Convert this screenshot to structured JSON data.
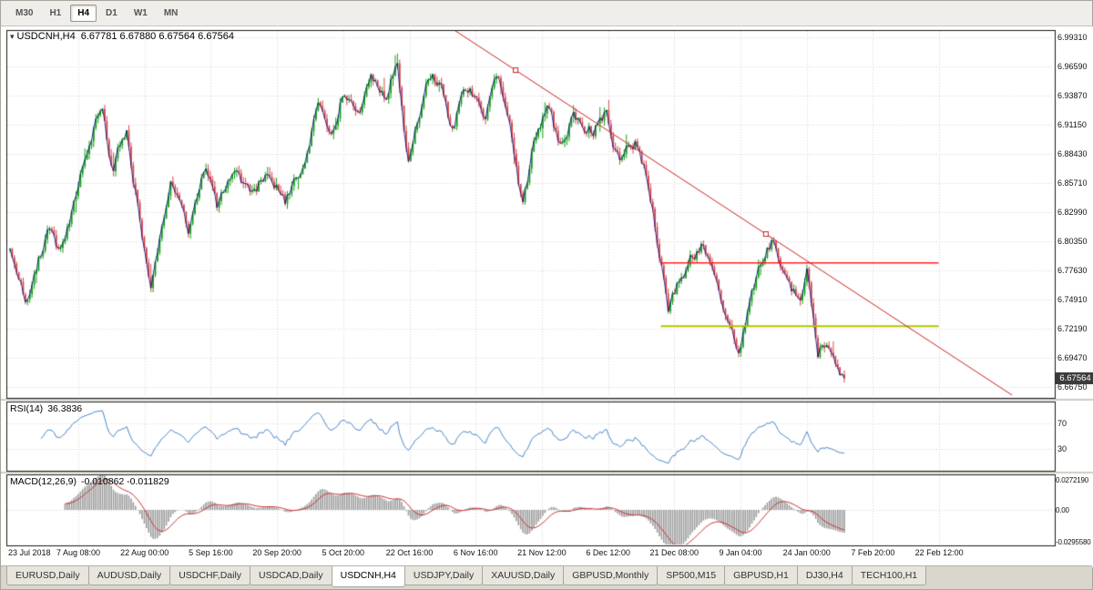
{
  "colors": {
    "up": "#17a317",
    "down": "#d84a4a",
    "close_line": "#000080",
    "rsi_line": "#4a86c8",
    "macd_hist": "#9b9b9b",
    "macd_signal": "#cc3333",
    "trendline": "#cc2222",
    "hline_red": "#ff2020",
    "hline_olive": "#b4c400",
    "grid": "#d6d6d6",
    "badge_bg": "#3c3c3c"
  },
  "toolbar": {
    "timeframes": [
      {
        "label": "M30",
        "active": false
      },
      {
        "label": "H1",
        "active": false
      },
      {
        "label": "H4",
        "active": true
      },
      {
        "label": "D1",
        "active": false
      },
      {
        "label": "W1",
        "active": false
      },
      {
        "label": "MN",
        "active": false
      }
    ]
  },
  "chart": {
    "title_symbol": "USDCNH,H4",
    "title_ohlc": "6.67781 6.67880 6.67564 6.67564",
    "current_price": "6.67564",
    "price_axis_labels": [
      "6.99310",
      "6.96590",
      "6.93870",
      "6.91150",
      "6.88430",
      "6.85710",
      "6.82990",
      "6.80350",
      "6.77630",
      "6.74910",
      "6.72190",
      "6.69470",
      "6.66750"
    ],
    "date_axis_labels": [
      "23 Jul 2018",
      "7 Aug 08:00",
      "22 Aug 00:00",
      "5 Sep 16:00",
      "20 Sep 20:00",
      "5 Oct 20:00",
      "22 Oct 16:00",
      "6 Nov 16:00",
      "21 Nov 12:00",
      "6 Dec 12:00",
      "21 Dec 08:00",
      "9 Jan 04:00",
      "24 Jan 00:00",
      "7 Feb 20:00",
      "22 Feb 12:00"
    ]
  },
  "rsi": {
    "name": "RSI(14)",
    "value": "36.3836",
    "levels": [
      {
        "label": "70",
        "value": 70
      },
      {
        "label": "30",
        "value": 30
      }
    ]
  },
  "macd": {
    "name": "MACD(12,26,9)",
    "values": "-0.010862 -0.011829",
    "axis": [
      {
        "label": "0.0272190",
        "value": 0.027219
      },
      {
        "label": "0.00",
        "value": 0
      },
      {
        "label": "-0.0295580",
        "value": -0.029558
      }
    ]
  },
  "tabs": [
    "EURUSD,Daily",
    "AUDUSD,Daily",
    "USDCHF,Daily",
    "USDCAD,Daily",
    "USDCNH,H4",
    "USDJPY,Daily",
    "XAUUSD,Daily",
    "GBPUSD,Monthly",
    "SP500,M15",
    "GBPUSD,H1",
    "DJ30,H4",
    "TECH100,H1"
  ],
  "active_tab": "USDCNH,H4",
  "chart_data": {
    "type": "candlestick",
    "symbol": "USDCNH",
    "timeframe": "H4",
    "bars": 380,
    "last_close": 6.67564,
    "axis": {
      "price_min": 6.6675,
      "price_max": 6.9931,
      "grid_step": 0.0272
    },
    "waypoints": [
      [
        0.0,
        6.795
      ],
      [
        0.02,
        6.745
      ],
      [
        0.045,
        6.815
      ],
      [
        0.06,
        6.79
      ],
      [
        0.11,
        6.935
      ],
      [
        0.123,
        6.868
      ],
      [
        0.14,
        6.91
      ],
      [
        0.16,
        6.8
      ],
      [
        0.168,
        6.758
      ],
      [
        0.193,
        6.865
      ],
      [
        0.213,
        6.812
      ],
      [
        0.234,
        6.872
      ],
      [
        0.248,
        6.833
      ],
      [
        0.27,
        6.868
      ],
      [
        0.29,
        6.845
      ],
      [
        0.31,
        6.874
      ],
      [
        0.33,
        6.836
      ],
      [
        0.345,
        6.86
      ],
      [
        0.37,
        6.933
      ],
      [
        0.385,
        6.895
      ],
      [
        0.4,
        6.949
      ],
      [
        0.415,
        6.914
      ],
      [
        0.433,
        6.954
      ],
      [
        0.45,
        6.938
      ],
      [
        0.464,
        6.974
      ],
      [
        0.477,
        6.876
      ],
      [
        0.499,
        6.944
      ],
      [
        0.514,
        6.955
      ],
      [
        0.529,
        6.91
      ],
      [
        0.548,
        6.948
      ],
      [
        0.569,
        6.924
      ],
      [
        0.584,
        6.953
      ],
      [
        0.599,
        6.918
      ],
      [
        0.614,
        6.836
      ],
      [
        0.629,
        6.898
      ],
      [
        0.644,
        6.924
      ],
      [
        0.659,
        6.894
      ],
      [
        0.674,
        6.918
      ],
      [
        0.699,
        6.908
      ],
      [
        0.714,
        6.923
      ],
      [
        0.729,
        6.879
      ],
      [
        0.749,
        6.894
      ],
      [
        0.764,
        6.859
      ],
      [
        0.774,
        6.814
      ],
      [
        0.789,
        6.737
      ],
      [
        0.8,
        6.76
      ],
      [
        0.814,
        6.786
      ],
      [
        0.829,
        6.8
      ],
      [
        0.844,
        6.768
      ],
      [
        0.858,
        6.735
      ],
      [
        0.873,
        6.701
      ],
      [
        0.888,
        6.755
      ],
      [
        0.903,
        6.79
      ],
      [
        0.917,
        6.804
      ],
      [
        0.932,
        6.768
      ],
      [
        0.947,
        6.744
      ],
      [
        0.956,
        6.774
      ],
      [
        0.968,
        6.7
      ],
      [
        0.979,
        6.714
      ],
      [
        0.99,
        6.684
      ],
      [
        1.0,
        6.6756
      ]
    ],
    "objects": {
      "trendline": {
        "f1": 0.529,
        "p1": 7.0016,
        "f2": 1.201,
        "p2": 6.6599,
        "handles_f": [
          0.606,
          0.906
        ]
      },
      "hlines": [
        {
          "price": 6.783,
          "f_start": 0.78,
          "f_end": 1.113,
          "color_key": "hline_red",
          "width": 1.4
        },
        {
          "price": 6.724,
          "f_start": 0.78,
          "f_end": 1.113,
          "color_key": "hline_olive",
          "width": 2
        }
      ]
    },
    "indicators": {
      "rsi": {
        "period": 14,
        "last": 36.3836
      },
      "macd": {
        "fast": 12,
        "slow": 26,
        "signal": 9,
        "last_macd": -0.010862,
        "last_signal": -0.011829
      }
    }
  }
}
